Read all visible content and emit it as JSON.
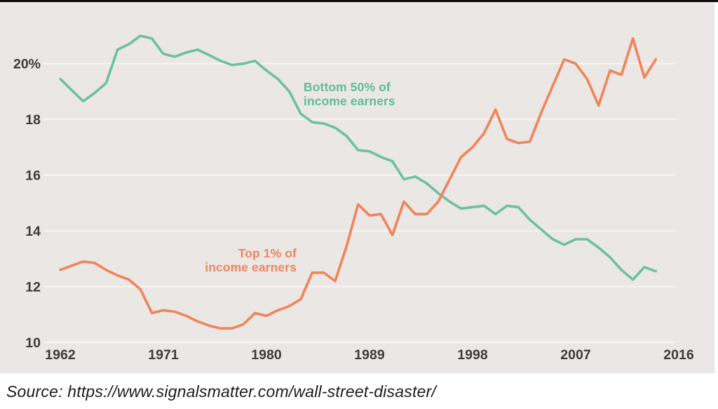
{
  "figure": {
    "source_text": "Source: https://www.signalsmatter.com/wall-street-disaster/",
    "background": "#ffffff",
    "panel_background": "#ebe7e4",
    "top_border_color": "#0d0d0d"
  },
  "chart_data": {
    "type": "line",
    "title": "",
    "xlabel": "",
    "ylabel": "",
    "grid": "horizontal-only",
    "gridline_color": "#f8f5f2",
    "tick_color": "#3e3b39",
    "legend_position": "inline-annotations",
    "x": [
      1962,
      1963,
      1964,
      1965,
      1966,
      1967,
      1968,
      1969,
      1970,
      1971,
      1972,
      1973,
      1974,
      1975,
      1976,
      1977,
      1978,
      1979,
      1980,
      1981,
      1982,
      1983,
      1984,
      1985,
      1986,
      1987,
      1988,
      1989,
      1990,
      1991,
      1992,
      1993,
      1994,
      1995,
      1996,
      1997,
      1998,
      1999,
      2000,
      2001,
      2002,
      2003,
      2004,
      2005,
      2006,
      2007,
      2008,
      2009,
      2010,
      2011,
      2012,
      2013,
      2014
    ],
    "series": [
      {
        "name": "Bottom 50% of income earners",
        "color": "#6cc1a1",
        "values": [
          19.45,
          19.05,
          18.65,
          18.95,
          19.3,
          20.5,
          20.7,
          21.0,
          20.9,
          20.35,
          20.25,
          20.4,
          20.5,
          20.3,
          20.1,
          19.95,
          20.0,
          20.1,
          19.75,
          19.45,
          19.0,
          18.2,
          17.9,
          17.85,
          17.7,
          17.4,
          16.9,
          16.85,
          16.65,
          16.5,
          15.85,
          15.95,
          15.7,
          15.35,
          15.05,
          14.8,
          14.85,
          14.9,
          14.6,
          14.9,
          14.85,
          14.4,
          14.05,
          13.7,
          13.5,
          13.7,
          13.7,
          13.4,
          13.05,
          12.6,
          12.25,
          12.7,
          12.55
        ]
      },
      {
        "name": "Top 1% of income earners",
        "color": "#f0845a",
        "values": [
          12.6,
          12.75,
          12.9,
          12.85,
          12.6,
          12.4,
          12.25,
          11.9,
          11.05,
          11.15,
          11.1,
          10.95,
          10.75,
          10.6,
          10.5,
          10.5,
          10.65,
          11.05,
          10.95,
          11.15,
          11.3,
          11.55,
          12.5,
          12.5,
          12.2,
          13.45,
          14.95,
          14.55,
          14.6,
          13.85,
          15.05,
          14.6,
          14.6,
          15.05,
          15.85,
          16.65,
          17.0,
          17.5,
          18.35,
          17.3,
          17.15,
          17.2,
          18.25,
          19.2,
          20.15,
          20.0,
          19.45,
          18.5,
          19.75,
          19.6,
          20.9,
          19.5,
          20.15
        ]
      }
    ],
    "x_ticks": [
      1962,
      1971,
      1980,
      1989,
      1998,
      2007,
      2016
    ],
    "y_ticks": [
      10,
      12,
      14,
      16,
      18,
      20
    ],
    "y_tick_labels": [
      "10",
      "12",
      "14",
      "16",
      "18",
      "20%"
    ],
    "xlim": [
      1960.5,
      2017.4
    ],
    "ylim": [
      8.9,
      22.3
    ],
    "annotations": [
      {
        "text": "Bottom 50% of\nincome earners",
        "color": "#5fbd9a",
        "series": "Bottom 50% of income earners"
      },
      {
        "text": "Top 1% of\nincome earners",
        "color": "#ef855f",
        "series": "Top 1% of income earners"
      }
    ]
  }
}
